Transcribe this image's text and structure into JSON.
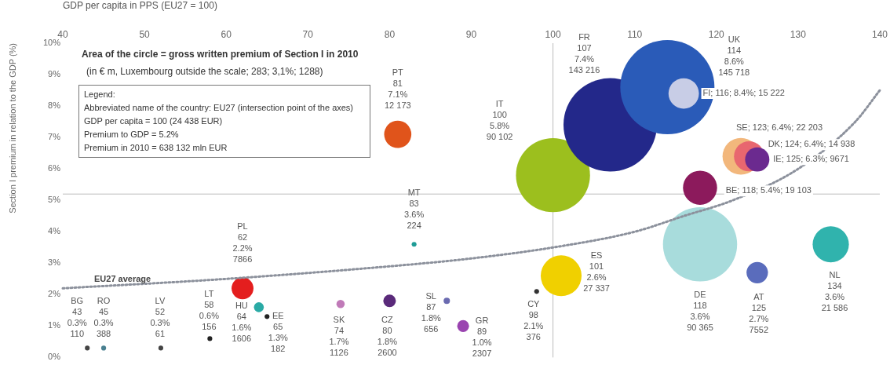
{
  "chart_data": {
    "type": "bubble",
    "xlabel": "GDP per capita in PPS (EU27 = 100)",
    "ylabel": "Section I premium in relation to the GDP (%)",
    "xlim": [
      40,
      140
    ],
    "xticks": [
      40,
      50,
      60,
      70,
      80,
      90,
      100,
      110,
      120,
      130,
      140
    ],
    "ylim": [
      0,
      10
    ],
    "yticks": [
      {
        "value": 0,
        "label": "0%"
      },
      {
        "value": 1,
        "label": "1%"
      },
      {
        "value": 2,
        "label": "2%"
      },
      {
        "value": 3,
        "label": "3%"
      },
      {
        "value": 4,
        "label": "4%"
      },
      {
        "value": 5,
        "label": "5%"
      },
      {
        "value": 6,
        "label": "6%"
      },
      {
        "value": 7,
        "label": "7%"
      },
      {
        "value": 8,
        "label": "8%"
      },
      {
        "value": 9,
        "label": "9%"
      },
      {
        "value": 10,
        "label": "10%"
      }
    ],
    "grid": false,
    "legend": false,
    "ref_lines": [
      {
        "axis": "x",
        "value": 100,
        "color": "#bbbbbb"
      },
      {
        "axis": "y",
        "value": 5.2,
        "color": "#bbbbbb"
      }
    ],
    "annotations": [
      "Area of the circle = gross written premium of Section I in 2010",
      "(in € m, Luxembourg outside the scale;  283;  3,1%;  1288)",
      "Legend:",
      "Abbreviated name of the country: EU27 (intersection point of the axes)",
      "GDP per capita = 100 (24 438 EUR)",
      "Premium to GDP = 5.2%",
      "Premium in 2010 = 638 132 mln EUR"
    ],
    "series": [
      {
        "type": "line",
        "name": "EU27 average",
        "color": "#8c919c",
        "line_style": "dotted",
        "marker": "none",
        "x": [
          40,
          60,
          80,
          90,
          100,
          110,
          116,
          122,
          130,
          137,
          140
        ],
        "values": [
          2.2,
          2.5,
          2.9,
          3.15,
          3.5,
          4.0,
          4.5,
          5.0,
          6.0,
          7.5,
          8.5
        ]
      },
      {
        "type": "bubble",
        "marker": "circle",
        "x": [
          81,
          100,
          107,
          114,
          116,
          123,
          124,
          125,
          118,
          83,
          62,
          101,
          118,
          134,
          125,
          98,
          89,
          87,
          80,
          74,
          65,
          64,
          58,
          52,
          45,
          43
        ],
        "values": [
          7.1,
          5.8,
          7.4,
          8.6,
          8.4,
          6.4,
          6.4,
          6.3,
          5.4,
          3.6,
          2.2,
          2.6,
          3.6,
          3.6,
          2.7,
          2.1,
          1.0,
          1.8,
          1.8,
          1.7,
          1.3,
          1.6,
          0.6,
          0.3,
          0.3,
          0.3
        ],
        "sizes": [
          0.0835,
          0.618,
          0.983,
          1,
          0.1045,
          0.152,
          0.1025,
          0.0664,
          0.131,
          0.0026,
          0.054,
          0.188,
          0.62,
          0.148,
          0.0518,
          0.0026,
          0.0158,
          0.0045,
          0.0178,
          0.0077,
          0.0026,
          0.011,
          0.0026,
          0.0026,
          0.0027,
          0.0026
        ],
        "colors": [
          "#e0541b",
          "#9cbf1e",
          "#23288a",
          "#2a5bb8",
          "#c8cde6",
          "#f2b77c",
          "#e8676f",
          "#6b2a8f",
          "#8c1a5c",
          "#1f9c96",
          "#e41e1e",
          "#f0d000",
          "#a8dcdc",
          "#30b3ad",
          "#5a6cbc",
          "#333333",
          "#9a44b0",
          "#6a6ab0",
          "#5a2a7a",
          "#c07ab8",
          "#222222",
          "#2aaaa5",
          "#222222",
          "#444444",
          "#4a8090",
          "#444444"
        ],
        "value_labels": [
          "PT\n81\n7.1%\n12 173",
          "IT\n100\n5.8%\n90 102",
          "FR\n107\n7.4%\n143 216",
          "UK\n114\n8.6%\n145 718",
          "FI; 116; 8.4%; 15 222",
          "SE; 123; 6.4%; 22 203",
          "DK; 124; 6.4%; 14 938",
          "IE; 125; 6.3%; 9671",
          "BE; 118; 5.4%; 19 103",
          "MT\n83\n3.6%\n224",
          "PL\n62\n2.2%\n7866",
          "ES\n101\n2.6%\n27 337",
          "DE\n118\n3.6%\n90 365",
          "NL\n134\n3.6%\n21 586",
          "AT\n125\n2.7%\n7552",
          "CY\n98\n2.1%\n376",
          "GR\n89\n1.0%\n2307",
          "SL\n87\n1.8%\n656",
          "CZ\n80\n1.8%\n2600",
          "SK\n74\n1.7%\n1126",
          "EE\n65\n1.3%\n182",
          "HU\n64\n1.6%\n1606",
          "LT\n58\n0.6%\n156",
          "LV\n52\n0.3%\n61",
          "RO\n45\n0.3%\n388",
          "BG\n43\n0.3%\n110"
        ]
      }
    ]
  }
}
